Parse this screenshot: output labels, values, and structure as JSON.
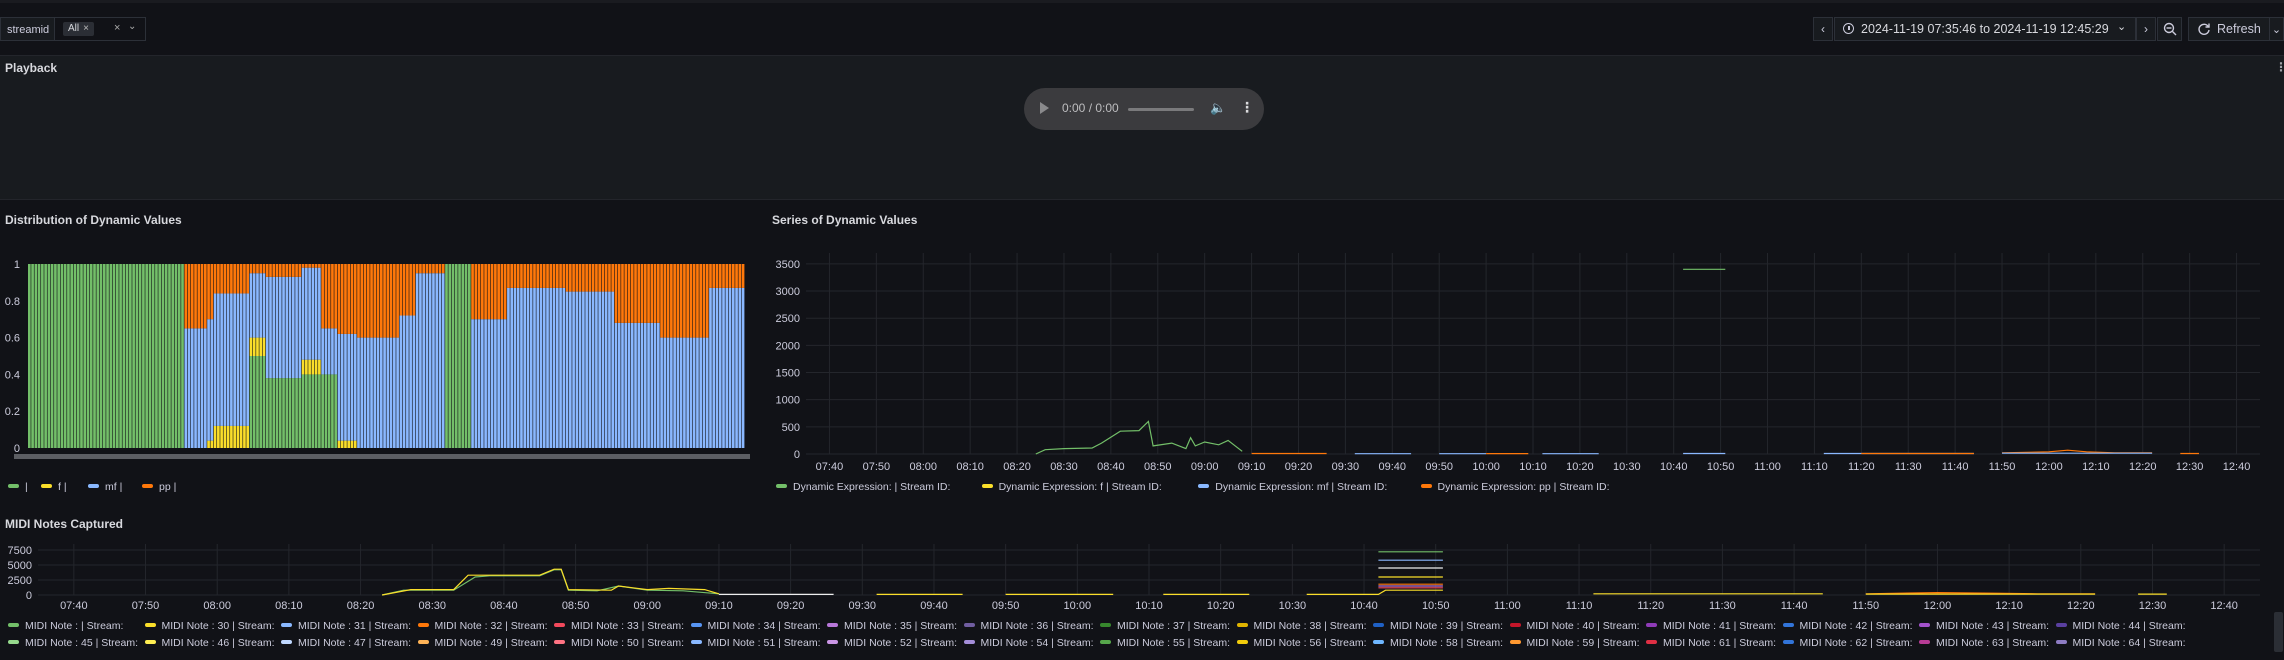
{
  "toolbar": {
    "variable_label": "streamid",
    "variable_value": "All",
    "chip_close": "×",
    "clear_icon": "×",
    "caret_icon": "⌄",
    "time_prev": "‹",
    "time_next": "›",
    "time_range": "2024-11-19 07:35:46 to 2024-11-19 12:45:29",
    "time_caret": "⌄",
    "zoom_out_icon": "zoom-out-icon",
    "refresh_label": "Refresh",
    "refresh_caret": "⌄"
  },
  "playback": {
    "title": "Playback",
    "audio_time": "0:00 / 0:00",
    "more_icon": "⋮"
  },
  "panels": {
    "distribution_title": "Distribution of Dynamic Values",
    "series_title": "Series of Dynamic Values",
    "midi_title": "MIDI Notes Captured",
    "panel_menu_icon": "⋮"
  },
  "colors": {
    "green": "#73bf69",
    "yellow": "#fade2a",
    "blue": "#8ab8ff",
    "orange": "#ff780a",
    "background": "#111217",
    "panel": "#181b1f"
  },
  "chart_data": [
    {
      "type": "bar",
      "name": "distribution",
      "stacked": true,
      "ylim": [
        0,
        1
      ],
      "yticks": [
        "0",
        "0.2",
        "0.4",
        "0.6",
        "0.8",
        "1"
      ],
      "legend": [
        {
          "label": "|",
          "color": "#73bf69"
        },
        {
          "label": "f |",
          "color": "#fade2a"
        },
        {
          "label": "mf |",
          "color": "#8ab8ff"
        },
        {
          "label": "pp |",
          "color": "#ff780a"
        }
      ],
      "segments": [
        {
          "from": 0,
          "to": 0.22,
          "green": 1.0,
          "yellow": 0,
          "blue": 0,
          "orange": 0
        },
        {
          "from": 0.22,
          "to": 0.25,
          "green": 0,
          "yellow": 0,
          "blue": 0.65,
          "orange": 0.35
        },
        {
          "from": 0.25,
          "to": 0.26,
          "green": 0,
          "yellow": 0.04,
          "blue": 0.66,
          "orange": 0.3
        },
        {
          "from": 0.26,
          "to": 0.31,
          "green": 0,
          "yellow": 0.12,
          "blue": 0.72,
          "orange": 0.16
        },
        {
          "from": 0.31,
          "to": 0.33,
          "green": 0.5,
          "yellow": 0.1,
          "blue": 0.35,
          "orange": 0.05
        },
        {
          "from": 0.33,
          "to": 0.38,
          "green": 0.38,
          "yellow": 0.0,
          "blue": 0.55,
          "orange": 0.07
        },
        {
          "from": 0.38,
          "to": 0.41,
          "green": 0.4,
          "yellow": 0.08,
          "blue": 0.5,
          "orange": 0.02
        },
        {
          "from": 0.41,
          "to": 0.43,
          "green": 0.4,
          "yellow": 0,
          "blue": 0.25,
          "orange": 0.35
        },
        {
          "from": 0.43,
          "to": 0.46,
          "green": 0,
          "yellow": 0.04,
          "blue": 0.58,
          "orange": 0.38
        },
        {
          "from": 0.46,
          "to": 0.52,
          "green": 0,
          "yellow": 0,
          "blue": 0.6,
          "orange": 0.4
        },
        {
          "from": 0.52,
          "to": 0.54,
          "green": 0,
          "yellow": 0,
          "blue": 0.72,
          "orange": 0.28
        },
        {
          "from": 0.54,
          "to": 0.58,
          "green": 0,
          "yellow": 0,
          "blue": 0.95,
          "orange": 0.05
        },
        {
          "from": 0.58,
          "to": 0.62,
          "green": 1.0,
          "yellow": 0,
          "blue": 0,
          "orange": 0
        },
        {
          "from": 0.62,
          "to": 0.67,
          "green": 0,
          "yellow": 0,
          "blue": 0.7,
          "orange": 0.3
        },
        {
          "from": 0.67,
          "to": 0.75,
          "green": 0,
          "yellow": 0,
          "blue": 0.87,
          "orange": 0.13
        },
        {
          "from": 0.75,
          "to": 0.82,
          "green": 0,
          "yellow": 0,
          "blue": 0.85,
          "orange": 0.15
        },
        {
          "from": 0.82,
          "to": 0.88,
          "green": 0,
          "yellow": 0,
          "blue": 0.68,
          "orange": 0.32
        },
        {
          "from": 0.88,
          "to": 0.95,
          "green": 0,
          "yellow": 0,
          "blue": 0.6,
          "orange": 0.4
        },
        {
          "from": 0.95,
          "to": 1.0,
          "green": 0,
          "yellow": 0,
          "blue": 0.87,
          "orange": 0.13
        }
      ]
    },
    {
      "type": "line",
      "name": "series",
      "ylim": [
        0,
        3700
      ],
      "yticks": [
        "0",
        "500",
        "1000",
        "1500",
        "2000",
        "2500",
        "3000",
        "3500"
      ],
      "xticks": [
        "07:40",
        "07:50",
        "08:00",
        "08:10",
        "08:20",
        "08:30",
        "08:40",
        "08:50",
        "09:00",
        "09:10",
        "09:20",
        "09:30",
        "09:40",
        "09:50",
        "10:00",
        "10:10",
        "10:20",
        "10:30",
        "10:40",
        "10:50",
        "11:00",
        "11:10",
        "11:20",
        "11:30",
        "11:40",
        "11:50",
        "12:00",
        "12:10",
        "12:20",
        "12:30",
        "12:40"
      ],
      "legend": [
        {
          "label": "Dynamic Expression: | Stream ID:",
          "color": "#73bf69"
        },
        {
          "label": "Dynamic Expression: f | Stream ID:",
          "color": "#fade2a"
        },
        {
          "label": "Dynamic Expression: mf | Stream ID:",
          "color": "#8ab8ff"
        },
        {
          "label": "Dynamic Expression: pp | Stream ID:",
          "color": "#ff780a"
        }
      ],
      "series": [
        {
          "color": "#73bf69",
          "points": [
            [
              "08:24",
              0
            ],
            [
              "08:26",
              80
            ],
            [
              "08:30",
              100
            ],
            [
              "08:36",
              110
            ],
            [
              "08:38",
              200
            ],
            [
              "08:42",
              420
            ],
            [
              "08:46",
              430
            ],
            [
              "08:48",
              600
            ],
            [
              "08:49",
              150
            ],
            [
              "08:53",
              200
            ],
            [
              "08:56",
              100
            ],
            [
              "08:57",
              300
            ],
            [
              "08:58",
              150
            ],
            [
              "09:00",
              220
            ],
            [
              "09:03",
              170
            ],
            [
              "09:05",
              250
            ],
            [
              "09:08",
              50
            ]
          ]
        },
        {
          "color": "#73bf69",
          "points": [
            [
              "10:42",
              3400
            ],
            [
              "10:51",
              3400
            ]
          ]
        },
        {
          "color": "#ff780a",
          "points": [
            [
              "09:10",
              10
            ],
            [
              "09:26",
              10
            ]
          ]
        },
        {
          "color": "#8ab8ff",
          "points": [
            [
              "09:32",
              5
            ],
            [
              "09:44",
              5
            ]
          ]
        },
        {
          "color": "#8ab8ff",
          "points": [
            [
              "09:50",
              5
            ],
            [
              "10:00",
              5
            ]
          ]
        },
        {
          "color": "#ff780a",
          "points": [
            [
              "10:00",
              8
            ],
            [
              "10:09",
              8
            ]
          ]
        },
        {
          "color": "#8ab8ff",
          "points": [
            [
              "10:12",
              5
            ],
            [
              "10:24",
              5
            ]
          ]
        },
        {
          "color": "#8ab8ff",
          "points": [
            [
              "10:42",
              10
            ],
            [
              "10:51",
              10
            ]
          ]
        },
        {
          "color": "#8ab8ff",
          "points": [
            [
              "11:12",
              10
            ],
            [
              "11:44",
              10
            ]
          ]
        },
        {
          "color": "#ff780a",
          "points": [
            [
              "11:20",
              10
            ],
            [
              "11:44",
              10
            ]
          ]
        },
        {
          "color": "#ff780a",
          "points": [
            [
              "11:50",
              20
            ],
            [
              "12:00",
              40
            ],
            [
              "12:04",
              70
            ],
            [
              "12:08",
              40
            ],
            [
              "12:14",
              20
            ],
            [
              "12:22",
              20
            ]
          ]
        },
        {
          "color": "#8ab8ff",
          "points": [
            [
              "11:50",
              15
            ],
            [
              "12:22",
              15
            ]
          ]
        },
        {
          "color": "#ff780a",
          "points": [
            [
              "12:28",
              10
            ],
            [
              "12:32",
              10
            ]
          ]
        }
      ]
    },
    {
      "type": "line",
      "name": "midi",
      "ylim": [
        0,
        8500
      ],
      "yticks": [
        "0",
        "2500",
        "5000",
        "7500"
      ],
      "xticks": [
        "07:40",
        "07:50",
        "08:00",
        "08:10",
        "08:20",
        "08:30",
        "08:40",
        "08:50",
        "09:00",
        "09:10",
        "09:20",
        "09:30",
        "09:40",
        "09:50",
        "10:00",
        "10:10",
        "10:20",
        "10:30",
        "10:40",
        "10:50",
        "11:00",
        "11:10",
        "11:20",
        "11:30",
        "11:40",
        "11:50",
        "12:00",
        "12:10",
        "12:20",
        "12:30",
        "12:40"
      ],
      "series": [
        {
          "color": "#73bf69",
          "points": [
            [
              "08:23",
              0
            ],
            [
              "08:26",
              800
            ],
            [
              "08:33",
              800
            ],
            [
              "08:36",
              3000
            ],
            [
              "08:38",
              3200
            ],
            [
              "08:45",
              3200
            ],
            [
              "08:47",
              4200
            ],
            [
              "08:48",
              4200
            ],
            [
              "08:49",
              800
            ],
            [
              "08:53",
              700
            ],
            [
              "08:56",
              1500
            ],
            [
              "09:00",
              800
            ],
            [
              "09:05",
              700
            ],
            [
              "09:10",
              200
            ]
          ]
        },
        {
          "color": "#fade2a",
          "points": [
            [
              "08:23",
              0
            ],
            [
              "08:27",
              900
            ],
            [
              "08:33",
              900
            ],
            [
              "08:35",
              3300
            ],
            [
              "08:45",
              3300
            ],
            [
              "08:47",
              4300
            ],
            [
              "08:48",
              4300
            ],
            [
              "08:49",
              900
            ],
            [
              "08:55",
              800
            ],
            [
              "08:56",
              1500
            ],
            [
              "09:00",
              900
            ],
            [
              "09:03",
              1100
            ],
            [
              "09:08",
              900
            ],
            [
              "09:10",
              200
            ]
          ]
        },
        {
          "color": "#eeeeee",
          "points": [
            [
              "09:10",
              100
            ],
            [
              "09:26",
              100
            ]
          ]
        },
        {
          "color": "#fade2a",
          "points": [
            [
              "09:32",
              100
            ],
            [
              "09:44",
              100
            ]
          ]
        },
        {
          "color": "#fade2a",
          "points": [
            [
              "09:50",
              100
            ],
            [
              "10:05",
              100
            ]
          ]
        },
        {
          "color": "#fade2a",
          "points": [
            [
              "10:12",
              100
            ],
            [
              "10:24",
              100
            ]
          ]
        },
        {
          "color": "#fade2a",
          "points": [
            [
              "10:32",
              100
            ],
            [
              "10:42",
              100
            ],
            [
              "10:43",
              800
            ],
            [
              "10:51",
              800
            ]
          ]
        },
        {
          "color": "#73bf69",
          "points": [
            [
              "10:42",
              7200
            ],
            [
              "10:51",
              7200
            ]
          ]
        },
        {
          "color": "#8ab8ff",
          "points": [
            [
              "10:42",
              5800
            ],
            [
              "10:51",
              5800
            ]
          ]
        },
        {
          "color": "#eeeeee",
          "points": [
            [
              "10:42",
              4500
            ],
            [
              "10:51",
              4500
            ]
          ]
        },
        {
          "color": "#fade2a",
          "points": [
            [
              "10:42",
              3000
            ],
            [
              "10:51",
              3000
            ]
          ]
        },
        {
          "color": "#ff780a",
          "points": [
            [
              "10:42",
              1800
            ],
            [
              "10:51",
              1800
            ]
          ]
        },
        {
          "color": "#f2495c",
          "points": [
            [
              "10:42",
              1200
            ],
            [
              "10:51",
              1200
            ]
          ]
        },
        {
          "color": "#b877d9",
          "points": [
            [
              "10:42",
              1500
            ],
            [
              "10:51",
              1500
            ]
          ]
        },
        {
          "color": "#fade2a",
          "points": [
            [
              "11:12",
              200
            ],
            [
              "11:44",
              200
            ]
          ]
        },
        {
          "color": "#ff780a",
          "points": [
            [
              "11:50",
              200
            ],
            [
              "12:00",
              400
            ],
            [
              "12:08",
              300
            ],
            [
              "12:14",
              200
            ],
            [
              "12:22",
              200
            ]
          ]
        },
        {
          "color": "#fade2a",
          "points": [
            [
              "11:50",
              150
            ],
            [
              "12:22",
              150
            ]
          ]
        },
        {
          "color": "#fade2a",
          "points": [
            [
              "12:28",
              150
            ],
            [
              "12:32",
              150
            ]
          ]
        }
      ]
    }
  ],
  "midi_legend_row1": [
    {
      "label": "MIDI Note : | Stream:",
      "color": "#73bf69"
    },
    {
      "label": "MIDI Note : 30 | Stream:",
      "color": "#fade2a"
    },
    {
      "label": "MIDI Note : 31 | Stream:",
      "color": "#8ab8ff"
    },
    {
      "label": "MIDI Note : 32 | Stream:",
      "color": "#ff780a"
    },
    {
      "label": "MIDI Note : 33 | Stream:",
      "color": "#f2495c"
    },
    {
      "label": "MIDI Note : 34 | Stream:",
      "color": "#5794f2"
    },
    {
      "label": "MIDI Note : 35 | Stream:",
      "color": "#b877d9"
    },
    {
      "label": "MIDI Note : 36 | Stream:",
      "color": "#705da0"
    },
    {
      "label": "MIDI Note : 37 | Stream:",
      "color": "#37872d"
    },
    {
      "label": "MIDI Note : 38 | Stream:",
      "color": "#e0b400"
    },
    {
      "label": "MIDI Note : 39 | Stream:",
      "color": "#1f60c4"
    },
    {
      "label": "MIDI Note : 40 | Stream:",
      "color": "#c4162a"
    },
    {
      "label": "MIDI Note : 41 | Stream:",
      "color": "#8f3bb8"
    },
    {
      "label": "MIDI Note : 42 | Stream:",
      "color": "#3274d9"
    },
    {
      "label": "MIDI Note : 43 | Stream:",
      "color": "#a352cc"
    },
    {
      "label": "MIDI Note : 44 | Stream:",
      "color": "#5a3fa0"
    }
  ],
  "midi_legend_row2": [
    {
      "label": "MIDI Note : 45 | Stream:",
      "color": "#96d98d"
    },
    {
      "label": "MIDI Note : 46 | Stream:",
      "color": "#ffee52"
    },
    {
      "label": "MIDI Note : 47 | Stream:",
      "color": "#c0d8ff"
    },
    {
      "label": "MIDI Note : 49 | Stream:",
      "color": "#ffb357"
    },
    {
      "label": "MIDI Note : 50 | Stream:",
      "color": "#ff7383"
    },
    {
      "label": "MIDI Note : 51 | Stream:",
      "color": "#8ab8ff"
    },
    {
      "label": "MIDI Note : 52 | Stream:",
      "color": "#ca95e5"
    },
    {
      "label": "MIDI Note : 54 | Stream:",
      "color": "#a48ed9"
    },
    {
      "label": "MIDI Note : 55 | Stream:",
      "color": "#56a64b"
    },
    {
      "label": "MIDI Note : 56 | Stream:",
      "color": "#f2cc0c"
    },
    {
      "label": "MIDI Note : 58 | Stream:",
      "color": "#6fb7ff"
    },
    {
      "label": "MIDI Note : 59 | Stream:",
      "color": "#ff9830"
    },
    {
      "label": "MIDI Note : 61 | Stream:",
      "color": "#e02f44"
    },
    {
      "label": "MIDI Note : 62 | Stream:",
      "color": "#3274d9"
    },
    {
      "label": "MIDI Note : 63 | Stream:",
      "color": "#b83c96"
    },
    {
      "label": "MIDI Note : 64 | Stream:",
      "color": "#8e7cc3"
    }
  ]
}
